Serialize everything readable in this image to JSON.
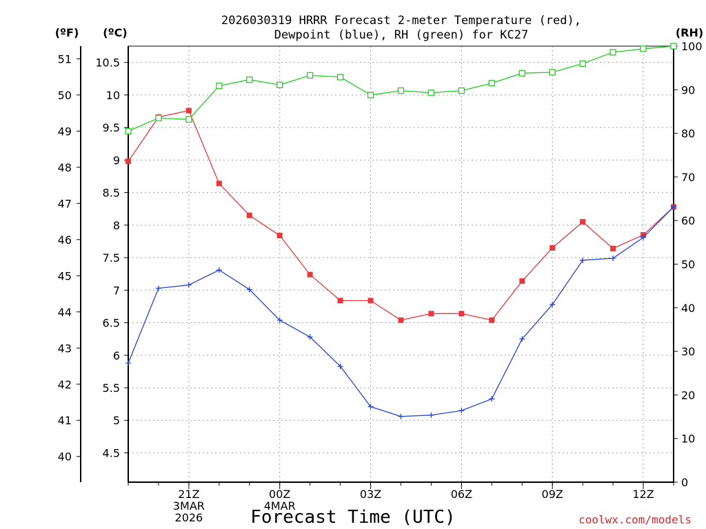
{
  "chart_data": {
    "type": "line",
    "title_lines": [
      "2026030319 HRRR Forecast 2-meter Temperature (red),",
      "Dewpoint (blue), RH (green) for KC27"
    ],
    "xlabel": "Forecast Time (UTC)",
    "credit": "coolwx.com/models",
    "x": [
      19,
      20,
      21,
      22,
      23,
      24,
      25,
      26,
      27,
      28,
      29,
      30,
      31,
      32,
      33,
      34,
      35,
      36,
      37
    ],
    "xlim": [
      19,
      37
    ],
    "x_ticks": [
      {
        "x": 21,
        "lines": [
          "21Z",
          "3MAR",
          "2026"
        ]
      },
      {
        "x": 24,
        "lines": [
          "00Z",
          "4MAR"
        ]
      },
      {
        "x": 27,
        "lines": [
          "03Z"
        ]
      },
      {
        "x": 30,
        "lines": [
          "06Z"
        ]
      },
      {
        "x": 33,
        "lines": [
          "09Z"
        ]
      },
      {
        "x": 36,
        "lines": [
          "12Z"
        ]
      }
    ],
    "axes": {
      "celsius": {
        "label": "(ºC)",
        "lim": [
          4.05,
          10.75
        ],
        "ticks": [
          "4.5",
          "5",
          "5.5",
          "6",
          "6.5",
          "7",
          "7.5",
          "8",
          "8.5",
          "9",
          "9.5",
          "10",
          "10.5"
        ]
      },
      "fahrenheit": {
        "label": "(ºF)",
        "ticks": [
          "40",
          "41",
          "42",
          "43",
          "44",
          "45",
          "46",
          "47",
          "48",
          "49",
          "50",
          "51"
        ]
      },
      "rh": {
        "label": "(RH)",
        "lim": [
          0,
          100
        ],
        "ticks": [
          "0",
          "10",
          "20",
          "30",
          "40",
          "50",
          "60",
          "70",
          "80",
          "90",
          "100"
        ]
      }
    },
    "series": [
      {
        "name": "2-meter Temperature",
        "color": "#e8383d",
        "axis": "celsius",
        "marker": "square",
        "values": [
          8.98,
          9.66,
          9.76,
          8.64,
          8.15,
          7.84,
          7.24,
          6.84,
          6.84,
          6.54,
          6.64,
          6.64,
          6.54,
          7.14,
          7.65,
          8.05,
          7.64,
          7.85,
          8.28
        ]
      },
      {
        "name": "Dewpoint",
        "color": "#2442e0",
        "axis": "celsius",
        "marker": "plus",
        "values": [
          5.88,
          7.03,
          7.08,
          7.31,
          7.01,
          6.54,
          6.28,
          5.83,
          5.21,
          5.06,
          5.08,
          5.15,
          5.33,
          6.25,
          6.78,
          7.46,
          7.49,
          7.81,
          8.28
        ]
      },
      {
        "name": "RH",
        "color": "#1fd01f",
        "axis": "rh",
        "marker": "open-square",
        "values": [
          80.5,
          83.5,
          83.2,
          90.9,
          92.3,
          91.1,
          93.3,
          92.9,
          88.8,
          89.8,
          89.3,
          89.8,
          91.5,
          93.8,
          94.0,
          96.0,
          98.6,
          99.4,
          100.0
        ]
      }
    ]
  }
}
